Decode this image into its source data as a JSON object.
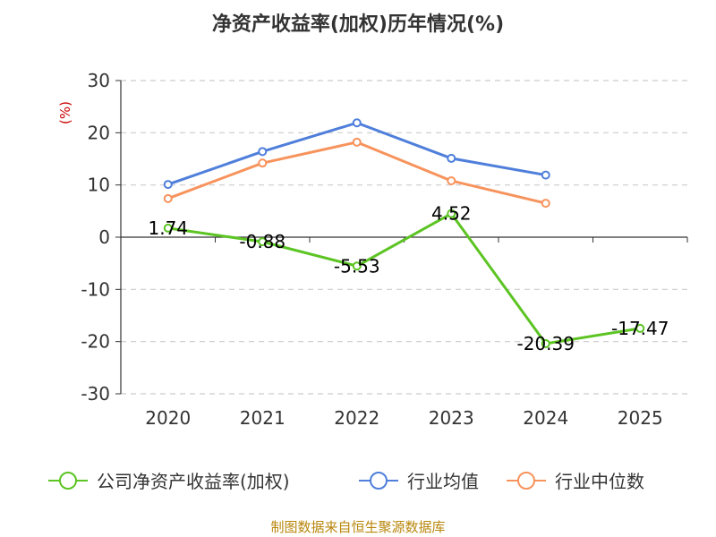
{
  "title": "净资产收益率(加权)历年情况(%)",
  "source": "制图数据来自恒生聚源数据库",
  "chart_data": {
    "type": "line",
    "categories": [
      "2020",
      "2021",
      "2022",
      "2023",
      "2024",
      "2025"
    ],
    "ylabel": "(%)",
    "ylim": [
      -30,
      30
    ],
    "yticks": [
      30,
      20,
      10,
      0,
      -10,
      -20,
      -30
    ],
    "grid": true,
    "legend_placement": "bottom",
    "series": [
      {
        "name": "公司净资产收益率(加权)",
        "color": "#5cc423",
        "values": [
          1.74,
          -0.88,
          -5.53,
          4.52,
          -20.39,
          -17.47
        ],
        "labels": [
          "1.74",
          "-0.88",
          "-5.53",
          "4.52",
          "-20.39",
          "-17.47"
        ]
      },
      {
        "name": "行业均值",
        "color": "#4f7fdb",
        "values": [
          10.1,
          16.4,
          21.9,
          15.1,
          11.9,
          null
        ]
      },
      {
        "name": "行业中位数",
        "color": "#f7935c",
        "values": [
          7.4,
          14.2,
          18.2,
          10.8,
          6.5,
          null
        ]
      }
    ]
  }
}
